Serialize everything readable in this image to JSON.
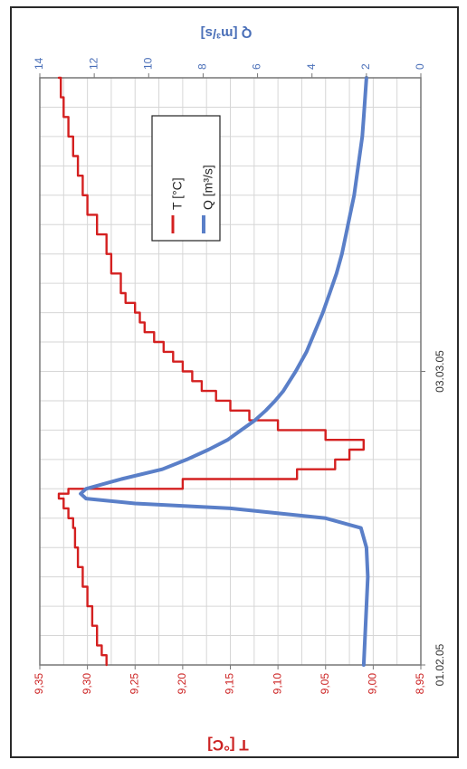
{
  "chart_data": {
    "type": "line",
    "orientation": "rotated-90-clockwise",
    "x_axis": {
      "tick_labels": [
        "01.02.05",
        "03.03.05"
      ],
      "range_days": [
        0,
        60
      ]
    },
    "y_left": {
      "label": "T [°C]",
      "range": [
        8.95,
        9.35
      ],
      "ticks": [
        "8,95",
        "9,00",
        "9,05",
        "9,10",
        "9,15",
        "9,20",
        "9,25",
        "9,30",
        "9,35"
      ]
    },
    "y_right": {
      "label": "Q [m³/s]",
      "range": [
        0,
        14
      ],
      "ticks": [
        "0",
        "2",
        "4",
        "6",
        "8",
        "10",
        "12",
        "14"
      ]
    },
    "grid": true,
    "legend": {
      "placement": "upper-center",
      "entries": [
        "T [°C]",
        "Q [m³/s]"
      ]
    },
    "series": [
      {
        "name": "T [°C]",
        "axis": "left",
        "color": "#d42020",
        "x": [
          0,
          1,
          2,
          4,
          6,
          8,
          10,
          12,
          14,
          15,
          16,
          17,
          17.5,
          18,
          19,
          20,
          21,
          22,
          23,
          24,
          25,
          26,
          27,
          28,
          29,
          30,
          31,
          32,
          33,
          34,
          35,
          36,
          37,
          38,
          40,
          42,
          44,
          46,
          48,
          50,
          52,
          54,
          56,
          58,
          60
        ],
        "y": [
          9.28,
          9.285,
          9.29,
          9.295,
          9.3,
          9.305,
          9.31,
          9.313,
          9.315,
          9.32,
          9.325,
          9.33,
          9.32,
          9.2,
          9.08,
          9.04,
          9.025,
          9.01,
          9.05,
          9.1,
          9.13,
          9.15,
          9.165,
          9.18,
          9.19,
          9.2,
          9.21,
          9.22,
          9.23,
          9.24,
          9.245,
          9.25,
          9.26,
          9.265,
          9.275,
          9.28,
          9.29,
          9.3,
          9.305,
          9.31,
          9.315,
          9.32,
          9.325,
          9.328,
          9.33
        ]
      },
      {
        "name": "Q [m³/s]",
        "axis": "right",
        "color": "#5a7fc8",
        "x": [
          0,
          3,
          6,
          9,
          12,
          14,
          15,
          16,
          16.5,
          17,
          17.5,
          18,
          19,
          20,
          21,
          22,
          23,
          24,
          25,
          26,
          27,
          28,
          30,
          32,
          34,
          36,
          38,
          40,
          42,
          44,
          46,
          48,
          50,
          52,
          54,
          56,
          58,
          60
        ],
        "y": [
          2.1,
          2.05,
          2.0,
          1.95,
          2.0,
          2.2,
          3.5,
          7.0,
          10.5,
          12.3,
          12.5,
          12.3,
          11.0,
          9.5,
          8.6,
          7.8,
          7.1,
          6.6,
          6.1,
          5.7,
          5.35,
          5.05,
          4.6,
          4.2,
          3.9,
          3.6,
          3.35,
          3.1,
          2.9,
          2.75,
          2.6,
          2.45,
          2.35,
          2.25,
          2.15,
          2.1,
          2.05,
          2.0
        ]
      }
    ]
  }
}
